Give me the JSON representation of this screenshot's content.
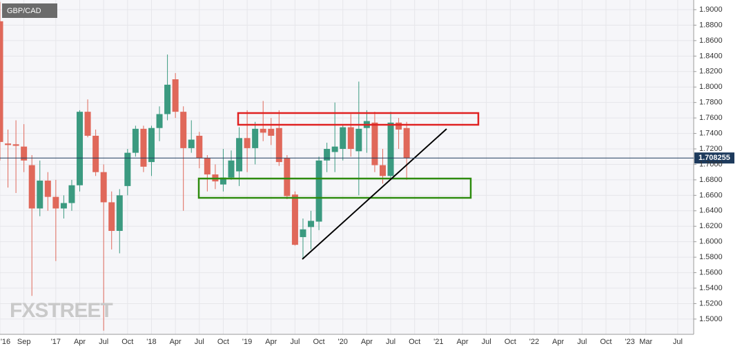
{
  "chart_data": {
    "type": "candlestick",
    "title": "GBP/CAD",
    "watermark": "FXSTREET",
    "last_price": 1.708255,
    "up_color": "#3b9a80",
    "down_color": "#e0685a",
    "x": [
      "2016-06",
      "2016-07",
      "2016-08",
      "2016-09",
      "2016-10",
      "2016-11",
      "2016-12",
      "2017-01",
      "2017-02",
      "2017-03",
      "2017-04",
      "2017-05",
      "2017-06",
      "2017-07",
      "2017-08",
      "2017-09",
      "2017-10",
      "2017-11",
      "2017-12",
      "2018-01",
      "2018-02",
      "2018-03",
      "2018-04",
      "2018-05",
      "2018-06",
      "2018-07",
      "2018-08",
      "2018-09",
      "2018-10",
      "2018-11",
      "2018-12",
      "2019-01",
      "2019-02",
      "2019-03",
      "2019-04",
      "2019-05",
      "2019-06",
      "2019-07",
      "2019-08",
      "2019-09",
      "2019-10",
      "2019-11",
      "2019-12",
      "2020-01",
      "2020-02",
      "2020-03",
      "2020-04",
      "2020-05",
      "2020-06",
      "2020-07",
      "2020-08",
      "2020-09"
    ],
    "open": [
      1.885,
      1.727,
      1.726,
      1.723,
      1.699,
      1.643,
      1.679,
      1.658,
      1.643,
      1.65,
      1.673,
      1.768,
      1.737,
      1.69,
      1.651,
      1.614,
      1.672,
      1.715,
      1.746,
      1.703,
      1.747,
      1.765,
      1.81,
      1.768,
      1.721,
      1.737,
      1.708,
      1.687,
      1.674,
      1.683,
      1.691,
      1.734,
      1.721,
      1.746,
      1.746,
      1.747,
      1.708,
      1.661,
      1.606,
      1.619,
      1.626,
      1.705,
      1.716,
      1.72,
      1.748,
      1.717,
      1.747,
      1.754,
      1.699,
      1.685,
      1.754,
      1.747
    ],
    "high": [
      1.91,
      1.745,
      1.757,
      1.752,
      1.712,
      1.705,
      1.69,
      1.68,
      1.66,
      1.68,
      1.77,
      1.784,
      1.745,
      1.7,
      1.665,
      1.668,
      1.72,
      1.75,
      1.75,
      1.75,
      1.775,
      1.842,
      1.818,
      1.775,
      1.757,
      1.742,
      1.712,
      1.7,
      1.72,
      1.718,
      1.748,
      1.77,
      1.755,
      1.782,
      1.76,
      1.77,
      1.712,
      1.665,
      1.63,
      1.64,
      1.71,
      1.728,
      1.78,
      1.752,
      1.765,
      1.807,
      1.77,
      1.768,
      1.72,
      1.768,
      1.76,
      1.755
    ],
    "low": [
      1.705,
      1.67,
      1.663,
      1.69,
      1.53,
      1.633,
      1.64,
      1.575,
      1.63,
      1.64,
      1.665,
      1.735,
      1.685,
      1.485,
      1.59,
      1.585,
      1.66,
      1.71,
      1.69,
      1.685,
      1.73,
      1.757,
      1.76,
      1.64,
      1.715,
      1.695,
      1.665,
      1.668,
      1.665,
      1.68,
      1.672,
      1.69,
      1.7,
      1.73,
      1.725,
      1.698,
      1.655,
      1.595,
      1.578,
      1.59,
      1.615,
      1.69,
      1.69,
      1.705,
      1.71,
      1.66,
      1.715,
      1.69,
      1.675,
      1.68,
      1.72,
      1.68
    ],
    "close": [
      1.729,
      1.725,
      1.724,
      1.705,
      1.643,
      1.679,
      1.658,
      1.643,
      1.65,
      1.673,
      1.768,
      1.737,
      1.69,
      1.651,
      1.614,
      1.66,
      1.715,
      1.746,
      1.697,
      1.747,
      1.765,
      1.803,
      1.768,
      1.721,
      1.732,
      1.708,
      1.687,
      1.678,
      1.683,
      1.705,
      1.734,
      1.721,
      1.746,
      1.741,
      1.737,
      1.703,
      1.659,
      1.596,
      1.616,
      1.627,
      1.705,
      1.72,
      1.723,
      1.748,
      1.72,
      1.746,
      1.756,
      1.699,
      1.685,
      1.754,
      1.745,
      1.708
    ],
    "xlim": [
      "2016-06",
      "2023-09"
    ],
    "xticks": [
      {
        "value": "2016-06",
        "label": "'16"
      },
      {
        "value": "2016-09",
        "label": "Sep"
      },
      {
        "value": "2017-01",
        "label": "'17"
      },
      {
        "value": "2017-04",
        "label": "Apr"
      },
      {
        "value": "2017-07",
        "label": "Jul"
      },
      {
        "value": "2017-10",
        "label": "Oct"
      },
      {
        "value": "2018-01",
        "label": "'18"
      },
      {
        "value": "2018-04",
        "label": "Apr"
      },
      {
        "value": "2018-07",
        "label": "Jul"
      },
      {
        "value": "2018-10",
        "label": "Oct"
      },
      {
        "value": "2019-01",
        "label": "'19"
      },
      {
        "value": "2019-04",
        "label": "Apr"
      },
      {
        "value": "2019-07",
        "label": "Jul"
      },
      {
        "value": "2019-10",
        "label": "Oct"
      },
      {
        "value": "2020-01",
        "label": "'20"
      },
      {
        "value": "2020-04",
        "label": "Apr"
      },
      {
        "value": "2020-07",
        "label": "Jul"
      },
      {
        "value": "2020-10",
        "label": "Oct"
      },
      {
        "value": "2021-01",
        "label": "'21"
      },
      {
        "value": "2021-04",
        "label": "Apr"
      },
      {
        "value": "2021-07",
        "label": "Jul"
      },
      {
        "value": "2021-10",
        "label": "Oct"
      },
      {
        "value": "2022-01",
        "label": "'22"
      },
      {
        "value": "2022-04",
        "label": "Apr"
      },
      {
        "value": "2022-07",
        "label": "Jul"
      },
      {
        "value": "2022-10",
        "label": "Oct"
      },
      {
        "value": "2023-01",
        "label": "'23"
      },
      {
        "value": "2023-03",
        "label": "Mar"
      },
      {
        "value": "2023-07",
        "label": "Jul"
      }
    ],
    "ylim": [
      1.4803,
      1.9125
    ],
    "yticks": [
      {
        "value": 1.5,
        "label": "1.5000"
      },
      {
        "value": 1.52,
        "label": "1.5200"
      },
      {
        "value": 1.54,
        "label": "1.5400"
      },
      {
        "value": 1.56,
        "label": "1.5600"
      },
      {
        "value": 1.58,
        "label": "1.5800"
      },
      {
        "value": 1.6,
        "label": "1.6000"
      },
      {
        "value": 1.62,
        "label": "1.6200"
      },
      {
        "value": 1.64,
        "label": "1.6400"
      },
      {
        "value": 1.66,
        "label": "1.6600"
      },
      {
        "value": 1.68,
        "label": "1.6800"
      },
      {
        "value": 1.7,
        "label": "1.7000"
      },
      {
        "value": 1.72,
        "label": "1.7200"
      },
      {
        "value": 1.74,
        "label": "1.7400"
      },
      {
        "value": 1.76,
        "label": "1.7600"
      },
      {
        "value": 1.78,
        "label": "1.7800"
      },
      {
        "value": 1.8,
        "label": "1.8000"
      },
      {
        "value": 1.82,
        "label": "1.8200"
      },
      {
        "value": 1.84,
        "label": "1.8400"
      },
      {
        "value": 1.86,
        "label": "1.8600"
      },
      {
        "value": 1.88,
        "label": "1.8800"
      },
      {
        "value": 1.9,
        "label": "1.9000"
      }
    ],
    "grid": true
  }
}
